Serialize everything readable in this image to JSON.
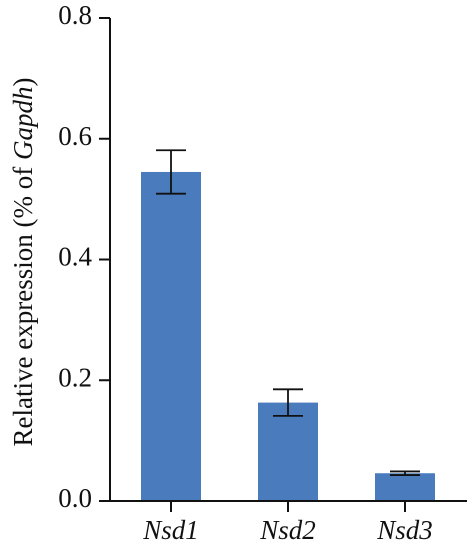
{
  "chart_data": {
    "type": "bar",
    "categories": [
      "Nsd1",
      "Nsd2",
      "Nsd3"
    ],
    "series": [
      {
        "values": [
          0.545,
          0.163,
          0.046
        ],
        "error": [
          0.036,
          0.022,
          0.003
        ]
      }
    ],
    "ylim": [
      0,
      0.8
    ],
    "yticks": [
      "0.0",
      "0.2",
      "0.4",
      "0.6",
      "0.8"
    ],
    "ylabel": {
      "prefix": "Relative expression (% of ",
      "gene": "Gapdh",
      "suffix": ")"
    },
    "xlabel": "",
    "grid": false,
    "legend": "none",
    "bar_color": "#4A7CBD",
    "axis_color": "#111111"
  }
}
